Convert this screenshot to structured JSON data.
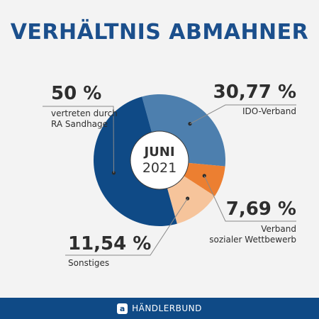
{
  "title": "VERHÄLTNIS ABMAHNER",
  "center_label": {
    "line1": "JUNI",
    "line2": "2021"
  },
  "chart_data": {
    "type": "pie",
    "slices": [
      {
        "label": "IDO-Verband",
        "value": 30.77,
        "display": "30,77 %",
        "color": "#4d7fae"
      },
      {
        "label": "Verband\nsozialer Wettbewerb",
        "value": 7.69,
        "display": "7,69 %",
        "color": "#ec7f31"
      },
      {
        "label": "Sonstiges",
        "value": 11.54,
        "display": "11,54 %",
        "color": "#f6c49b"
      },
      {
        "label": "vertreten durch\nRA Sandhage",
        "value": 50,
        "display": "50 %",
        "color": "#0f4a86"
      }
    ]
  },
  "footer": {
    "icon": "händlerbund-logo-icon",
    "brand": "HÄNDLERBUND"
  }
}
